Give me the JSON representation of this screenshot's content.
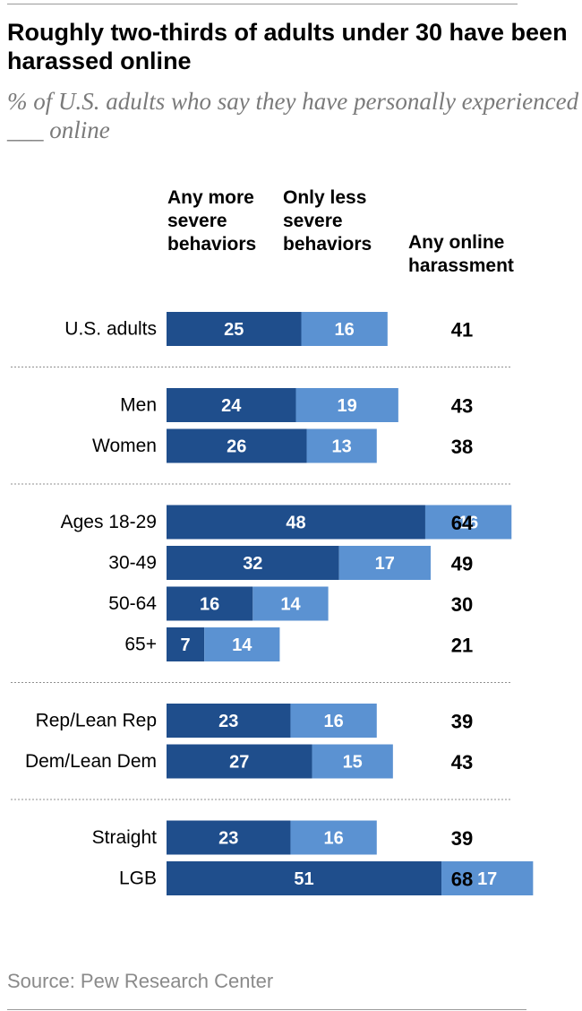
{
  "title": "Roughly two-thirds of adults under 30 have been harassed online",
  "subtitle": "% of U.S. adults who say they  have personally experienced ___ online",
  "columns": {
    "severe": "Any more severe behaviors",
    "less_severe": "Only less severe behaviors",
    "total": "Any online harassment"
  },
  "source": "Source: Pew Research Center",
  "colors": {
    "severe": "#1f4e8c",
    "less_severe": "#5b92d2",
    "divider": "#8f8f8f"
  },
  "chart_data": {
    "type": "bar",
    "stacked": true,
    "orientation": "horizontal",
    "groups": [
      {
        "rows": [
          {
            "label": "U.S. adults",
            "severe": 25,
            "less_severe": 16,
            "total": 41
          }
        ]
      },
      {
        "rows": [
          {
            "label": "Men",
            "severe": 24,
            "less_severe": 19,
            "total": 43
          },
          {
            "label": "Women",
            "severe": 26,
            "less_severe": 13,
            "total": 38
          }
        ]
      },
      {
        "rows": [
          {
            "label": "Ages 18-29",
            "severe": 48,
            "less_severe": 16,
            "total": 64
          },
          {
            "label": "30-49",
            "severe": 32,
            "less_severe": 17,
            "total": 49
          },
          {
            "label": "50-64",
            "severe": 16,
            "less_severe": 14,
            "total": 30
          },
          {
            "label": "65+",
            "severe": 7,
            "less_severe": 14,
            "total": 21
          }
        ]
      },
      {
        "rows": [
          {
            "label": "Rep/Lean Rep",
            "severe": 23,
            "less_severe": 16,
            "total": 39
          },
          {
            "label": "Dem/Lean Dem",
            "severe": 27,
            "less_severe": 15,
            "total": 43
          }
        ]
      },
      {
        "rows": [
          {
            "label": "Straight",
            "severe": 23,
            "less_severe": 16,
            "total": 39
          },
          {
            "label": "LGB",
            "severe": 51,
            "less_severe": 17,
            "total": 68
          }
        ]
      }
    ]
  }
}
